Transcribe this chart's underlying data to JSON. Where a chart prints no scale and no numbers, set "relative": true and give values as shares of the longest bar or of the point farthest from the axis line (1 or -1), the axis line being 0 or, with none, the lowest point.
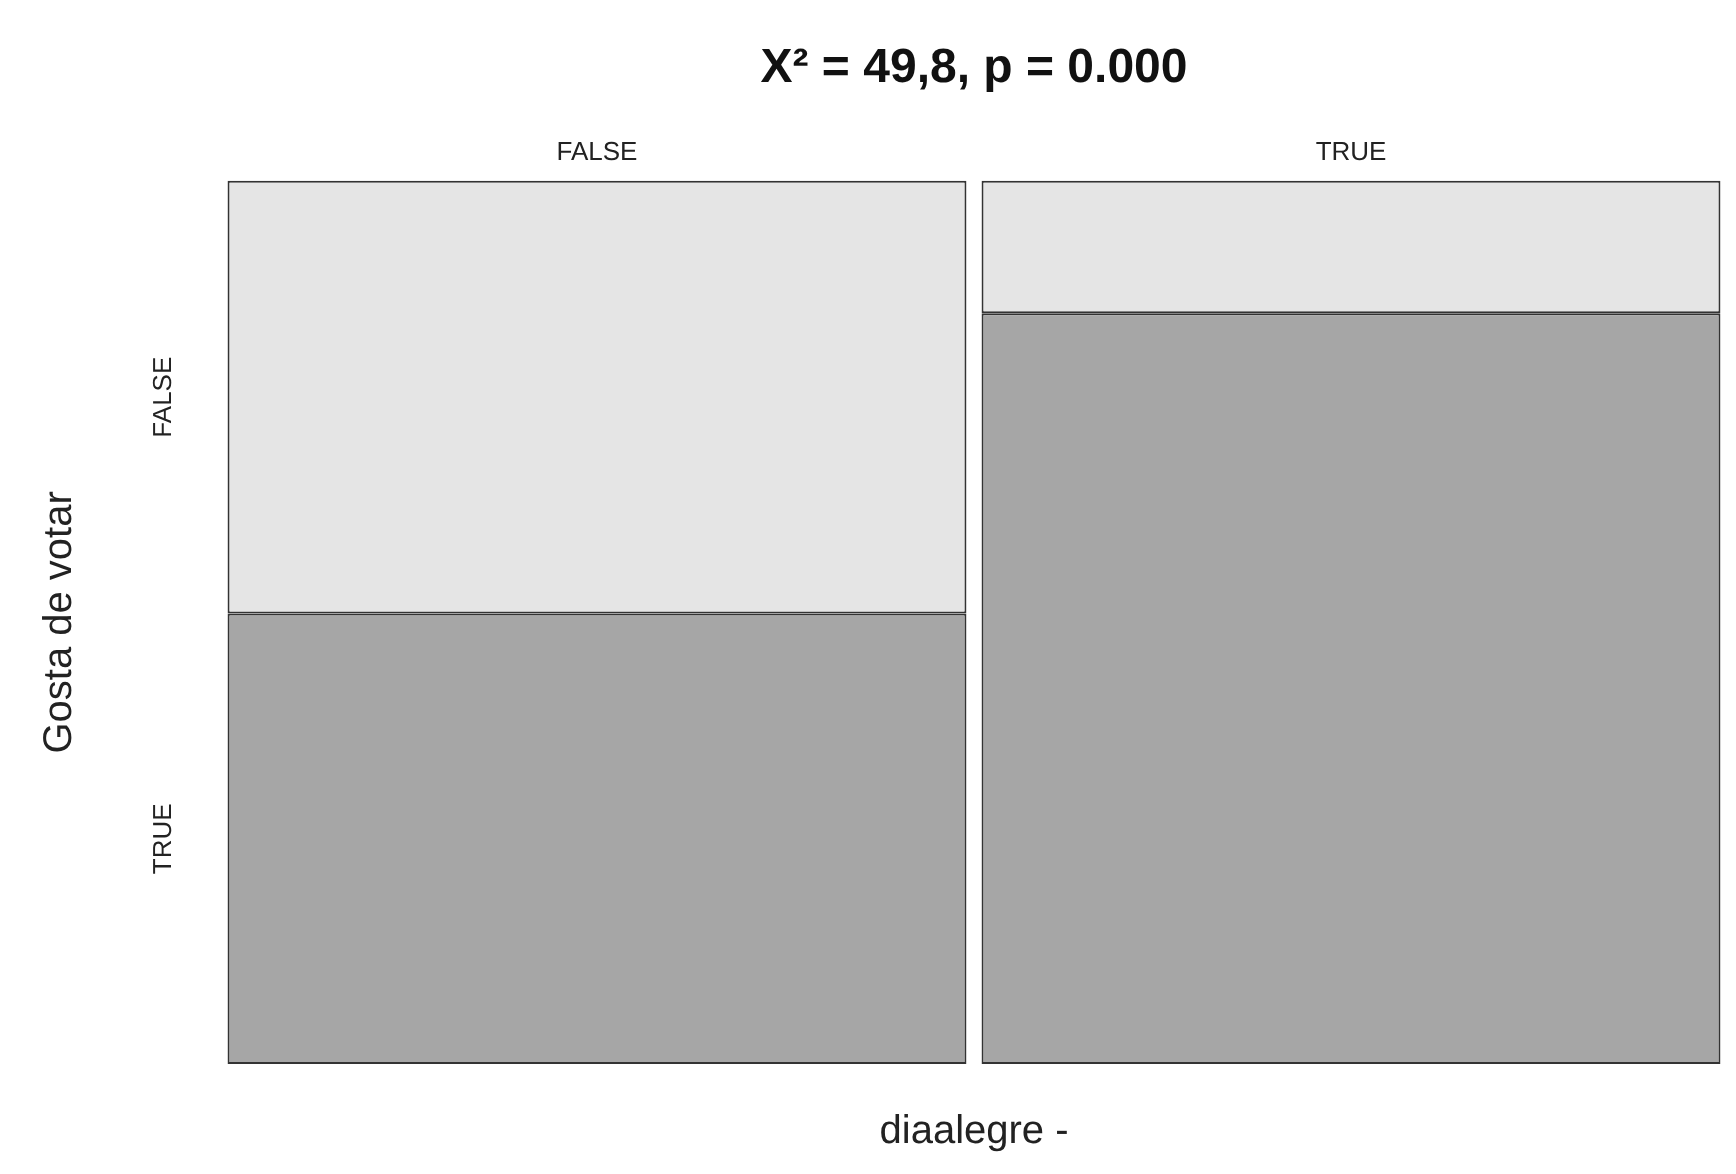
{
  "chart_data": {
    "type": "bar",
    "title": "X² = 49,8, p = 0.000",
    "xlabel": "diaalegre -",
    "ylabel": "Gosta de votar",
    "categories": [
      "FALSE",
      "TRUE"
    ],
    "stacked": true,
    "relative": true,
    "legend": false,
    "grid": false,
    "series": [
      {
        "name": "TRUE",
        "color": "#a6a6a6",
        "values": [
          0.51,
          0.85
        ]
      },
      {
        "name": "FALSE",
        "color": "#e5e5e5",
        "values": [
          0.49,
          0.15
        ]
      }
    ]
  }
}
